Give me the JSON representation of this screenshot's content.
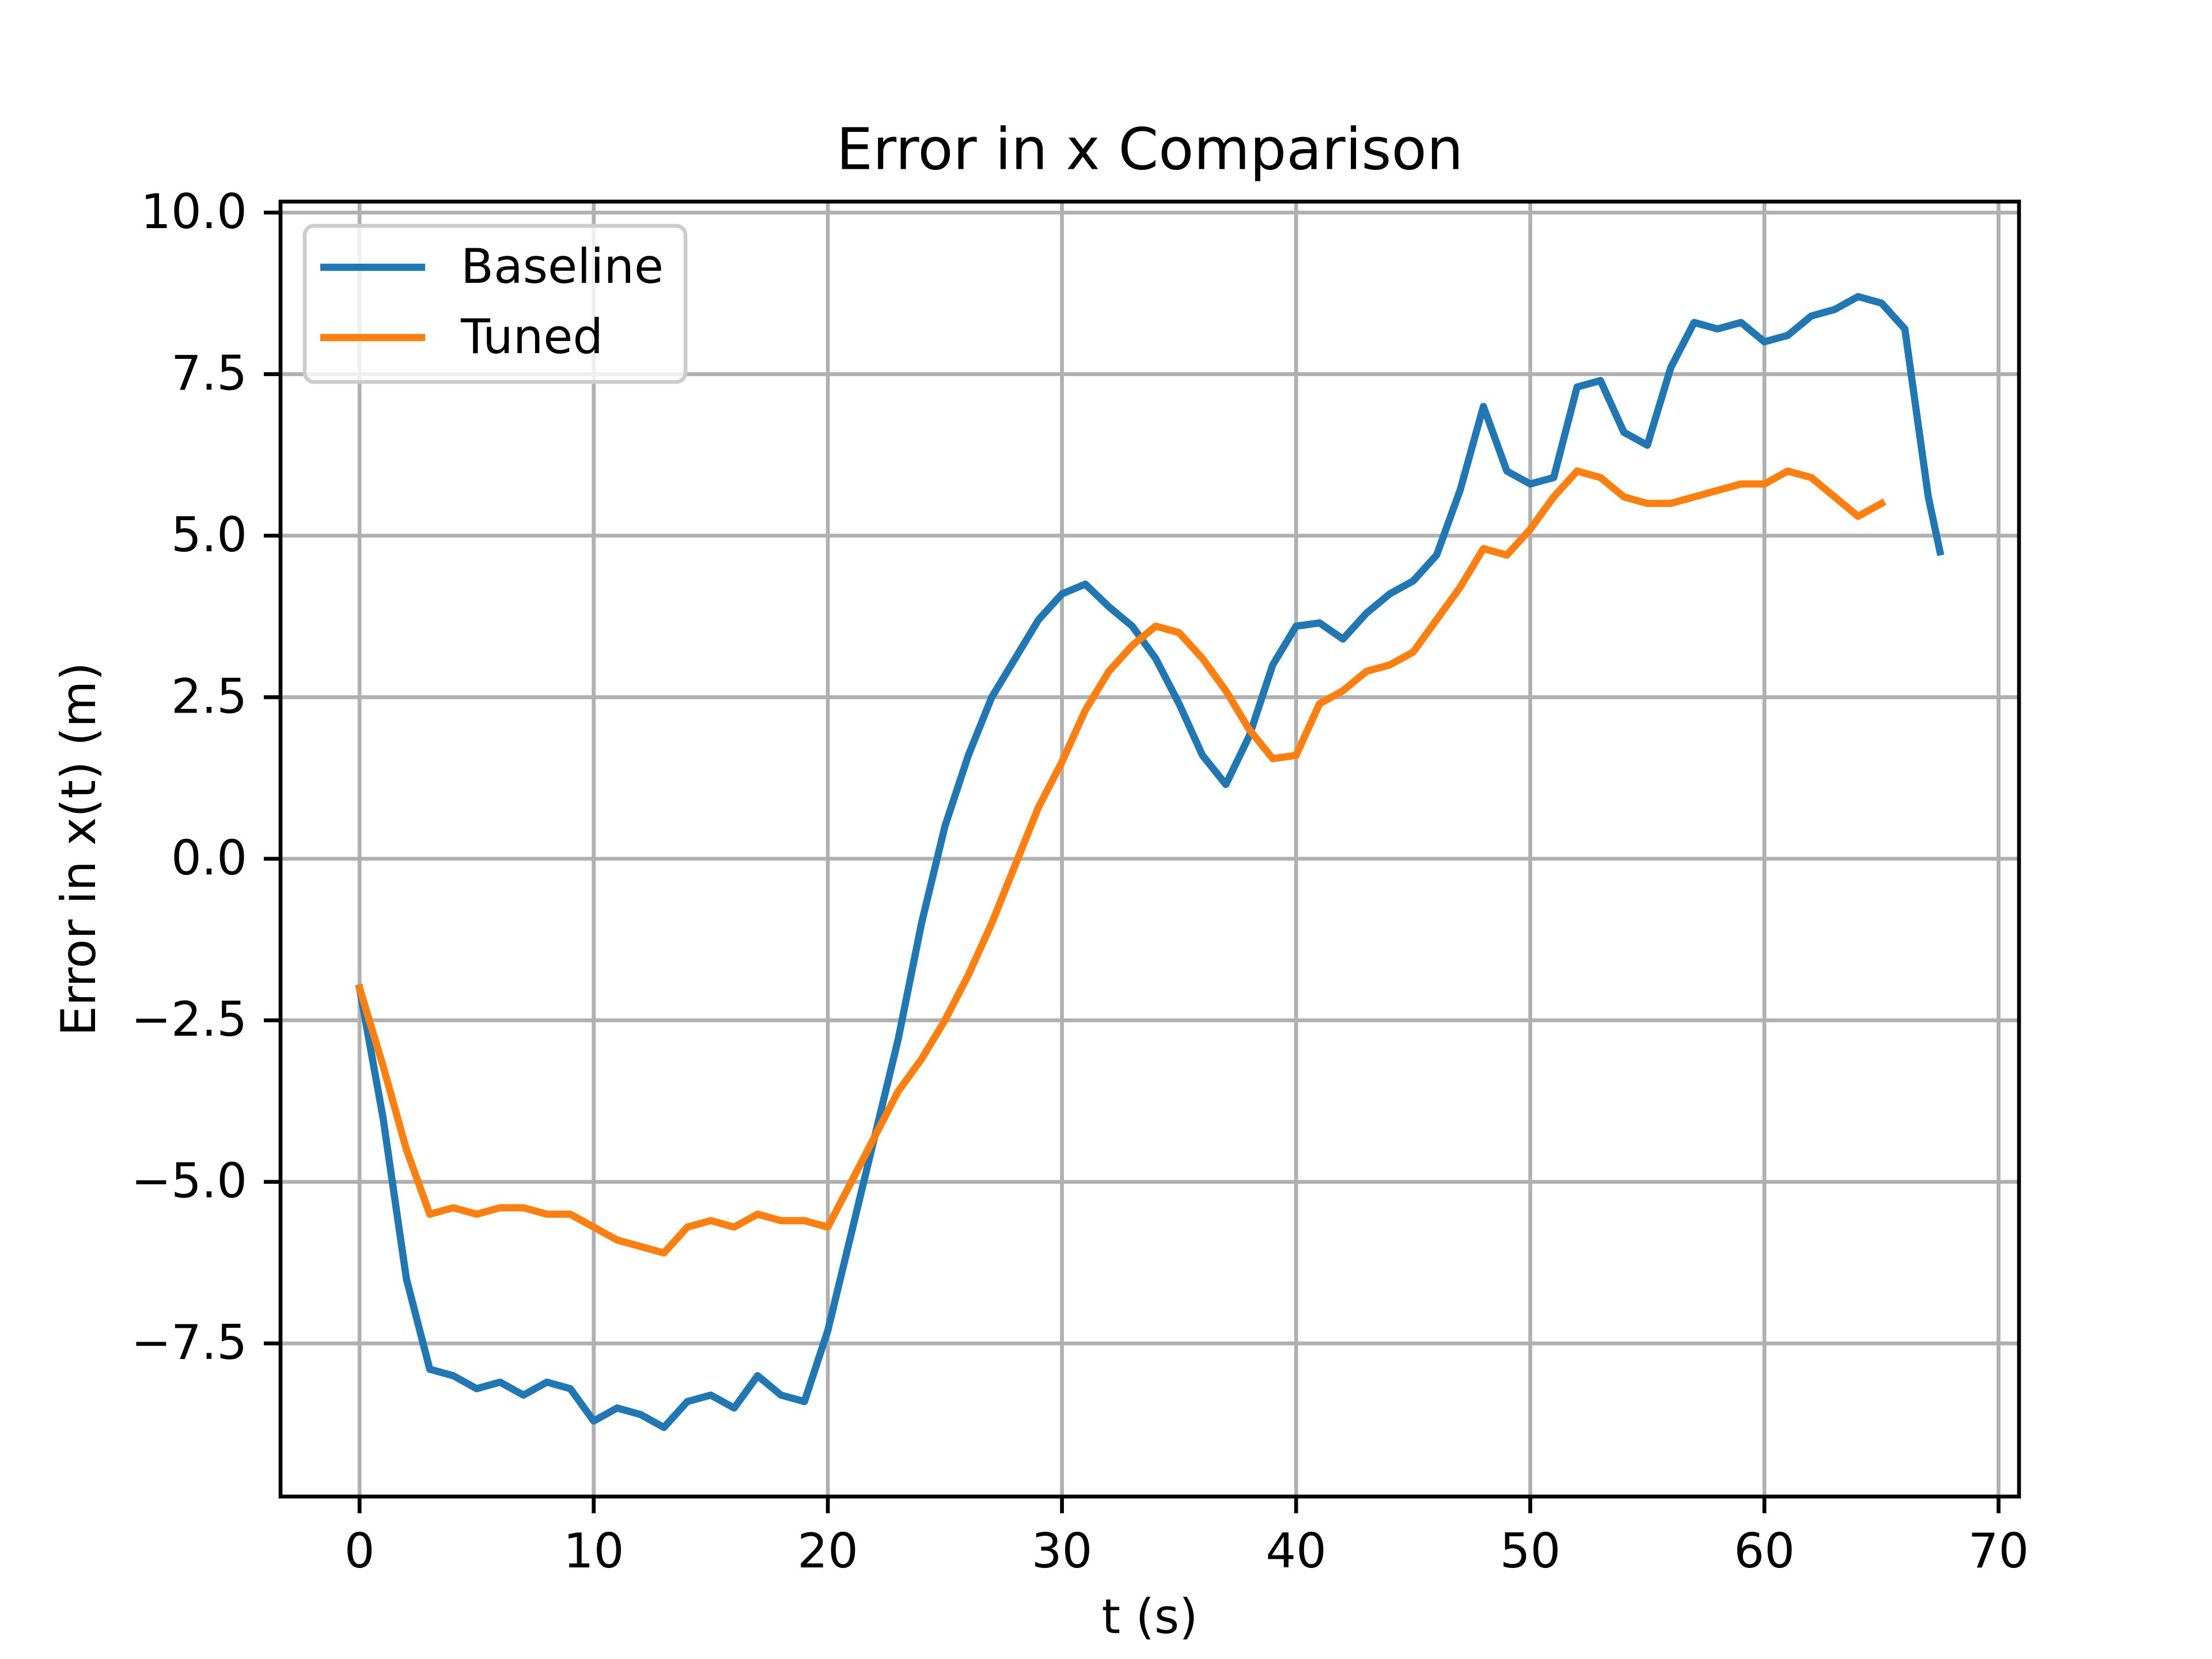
{
  "chart_data": {
    "type": "line",
    "title": "Error in x Comparison",
    "x_label": "t (s)",
    "y_label": "Error in x(t) (m)",
    "x": [
      0,
      1,
      2,
      3,
      4,
      5,
      6,
      7,
      8,
      9,
      10,
      11,
      12,
      13,
      14,
      15,
      16,
      17,
      18,
      19,
      20,
      21,
      22,
      23,
      24,
      25,
      26,
      27,
      28,
      29,
      30,
      31,
      32,
      33,
      34,
      35,
      36,
      37,
      38,
      39,
      40,
      41,
      42,
      43,
      44,
      45,
      46,
      47,
      48,
      49,
      50,
      51,
      52,
      53,
      54,
      55,
      56,
      57,
      58,
      59,
      60,
      61,
      62,
      63,
      64,
      65,
      66,
      67,
      67.5
    ],
    "series": [
      {
        "name": "Baseline",
        "color": "#1f77b4",
        "values": [
          -2.0,
          -4.0,
          -6.5,
          -7.9,
          -8.0,
          -8.2,
          -8.1,
          -8.3,
          -8.1,
          -8.2,
          -8.7,
          -8.5,
          -8.6,
          -8.8,
          -8.4,
          -8.3,
          -8.5,
          -8.0,
          -8.3,
          -8.4,
          -7.3,
          -5.8,
          -4.3,
          -2.8,
          -1.0,
          0.5,
          1.6,
          2.5,
          3.1,
          3.7,
          4.1,
          4.25,
          3.9,
          3.6,
          3.1,
          2.4,
          1.6,
          1.15,
          1.9,
          3.0,
          3.6,
          3.65,
          3.4,
          3.8,
          4.1,
          4.3,
          4.7,
          5.7,
          7.0,
          6.0,
          5.8,
          5.9,
          7.3,
          7.4,
          6.6,
          6.4,
          7.6,
          8.3,
          8.2,
          8.3,
          8.0,
          8.1,
          8.4,
          8.5,
          8.7,
          8.6,
          8.2,
          5.6,
          4.75
        ]
      },
      {
        "name": "Tuned",
        "color": "#ff7f0e",
        "values": [
          -2.0,
          -3.2,
          -4.5,
          -5.5,
          -5.4,
          -5.5,
          -5.4,
          -5.4,
          -5.5,
          -5.5,
          -5.7,
          -5.9,
          -6.0,
          -6.1,
          -5.7,
          -5.6,
          -5.7,
          -5.5,
          -5.6,
          -5.6,
          -5.7,
          -5.0,
          -4.3,
          -3.6,
          -3.1,
          -2.5,
          -1.8,
          -1.0,
          -0.1,
          0.8,
          1.5,
          2.3,
          2.9,
          3.3,
          3.6,
          3.5,
          3.1,
          2.6,
          2.0,
          1.55,
          1.6,
          2.4,
          2.6,
          2.9,
          3.0,
          3.2,
          3.7,
          4.2,
          4.8,
          4.7,
          5.1,
          5.6,
          6.0,
          5.9,
          5.6,
          5.5,
          5.5,
          5.6,
          5.7,
          5.8,
          5.8,
          6.0,
          5.9,
          5.6,
          5.3,
          5.5,
          null,
          null,
          null
        ]
      }
    ],
    "xlim": [
      -3.375,
      70.875
    ],
    "ylim": [
      -9.87,
      10.17
    ],
    "xticks": [
      0,
      10,
      20,
      30,
      40,
      50,
      60,
      70
    ],
    "yticks": [
      {
        "value": -7.5,
        "label": "−7.5"
      },
      {
        "value": -5,
        "label": "−5.0"
      },
      {
        "value": -2.5,
        "label": "−2.5"
      },
      {
        "value": 0,
        "label": "0.0"
      },
      {
        "value": 2.5,
        "label": "2.5"
      },
      {
        "value": 5,
        "label": "5.0"
      },
      {
        "value": 7.5,
        "label": "7.5"
      },
      {
        "value": 10,
        "label": "10.0"
      }
    ],
    "grid": true,
    "legend": "upper left"
  }
}
